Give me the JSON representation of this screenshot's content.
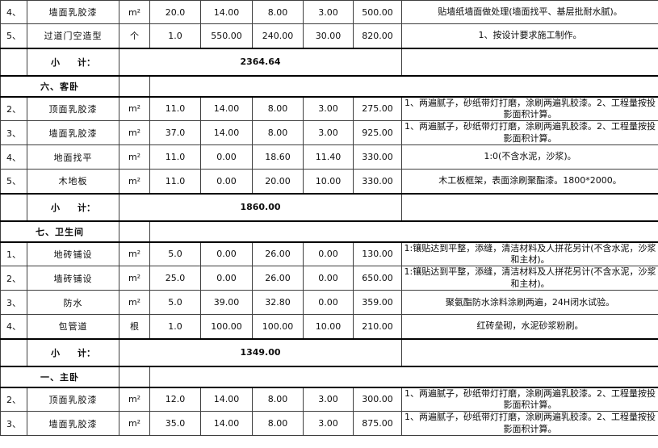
{
  "colors": {
    "border_thin": "#3f3f3f",
    "border_thick": "#000000",
    "text": "#0d0d0d",
    "background": "#ffffff"
  },
  "table": {
    "rows": [
      {
        "type": "item",
        "no": "4、",
        "name": "墙面乳胶漆",
        "unit": "m²",
        "qty": "20.0",
        "price1": "14.00",
        "price2": "8.00",
        "price3": "3.00",
        "total": "500.00",
        "remark": "贴墙纸墙面做处理(墙面找平、基层批耐水腻)。"
      },
      {
        "type": "item",
        "no": "5、",
        "name": "过道门空造型",
        "unit": "个",
        "qty": "1.0",
        "price1": "550.00",
        "price2": "240.00",
        "price3": "30.00",
        "total": "820.00",
        "remark": "1、按设计要求施工制作。"
      },
      {
        "type": "subtotal",
        "label": "小　　计：",
        "total": "2364.64",
        "remark": ""
      },
      {
        "type": "section",
        "title": "六、客卧"
      },
      {
        "type": "item",
        "no": "2、",
        "name": "顶面乳胶漆",
        "unit": "m²",
        "qty": "11.0",
        "price1": "14.00",
        "price2": "8.00",
        "price3": "3.00",
        "total": "275.00",
        "remark": "1、两遍腻子，砂纸带灯打磨，涂刷两遍乳胶漆。2、工程量按投影面积计算。"
      },
      {
        "type": "item",
        "no": "3、",
        "name": "墙面乳胶漆",
        "unit": "m²",
        "qty": "37.0",
        "price1": "14.00",
        "price2": "8.00",
        "price3": "3.00",
        "total": "925.00",
        "remark": "1、两遍腻子，砂纸带灯打磨，涂刷两遍乳胶漆。2、工程量按投影面积计算。"
      },
      {
        "type": "item",
        "no": "4、",
        "name": "地面找平",
        "unit": "m²",
        "qty": "11.0",
        "price1": "0.00",
        "price2": "18.60",
        "price3": "11.40",
        "total": "330.00",
        "remark": "1:0(不含水泥，沙浆)。"
      },
      {
        "type": "item",
        "no": "5、",
        "name": "木地板",
        "unit": "m²",
        "qty": "11.0",
        "price1": "0.00",
        "price2": "20.00",
        "price3": "10.00",
        "total": "330.00",
        "remark": "木工板框架，表面涂刷聚酯漆。1800*2000。"
      },
      {
        "type": "subtotal",
        "label": "小　　计：",
        "total": "1860.00",
        "remark": ""
      },
      {
        "type": "section",
        "title": "七、卫生间"
      },
      {
        "type": "item",
        "no": "1、",
        "name": "地砖铺设",
        "unit": "m²",
        "qty": "5.0",
        "price1": "0.00",
        "price2": "26.00",
        "price3": "0.00",
        "total": "130.00",
        "remark": "1:镶贴达到平整，添缝，清洁材料及人拼花另计(不含水泥，沙浆和主材)。"
      },
      {
        "type": "item",
        "no": "2、",
        "name": "墙砖铺设",
        "unit": "m²",
        "qty": "25.0",
        "price1": "0.00",
        "price2": "26.00",
        "price3": "0.00",
        "total": "650.00",
        "remark": "1:镶贴达到平整，添缝，清洁材料及人拼花另计(不含水泥，沙浆和主材)。"
      },
      {
        "type": "item",
        "no": "3、",
        "name": "防水",
        "unit": "m²",
        "qty": "5.0",
        "price1": "39.00",
        "price2": "32.80",
        "price3": "0.00",
        "total": "359.00",
        "remark": "聚氨酯防水涂料涂刷两遍，24H闭水试验。"
      },
      {
        "type": "item",
        "no": "4、",
        "name": "包管道",
        "unit": "根",
        "qty": "1.0",
        "price1": "100.00",
        "price2": "100.00",
        "price3": "10.00",
        "total": "210.00",
        "remark": "红砖垒砌，水泥砂浆粉刷。"
      },
      {
        "type": "subtotal",
        "label": "小　　计：",
        "total": "1349.00",
        "remark": ""
      },
      {
        "type": "section",
        "title": "一、主卧"
      },
      {
        "type": "item",
        "no": "2、",
        "name": "顶面乳胶漆",
        "unit": "m²",
        "qty": "12.0",
        "price1": "14.00",
        "price2": "8.00",
        "price3": "3.00",
        "total": "300.00",
        "remark": "1、两遍腻子，砂纸带灯打磨，涂刷两遍乳胶漆。2、工程量按投影面积计算。"
      },
      {
        "type": "item",
        "no": "3、",
        "name": "墙面乳胶漆",
        "unit": "m²",
        "qty": "35.0",
        "price1": "14.00",
        "price2": "8.00",
        "price3": "3.00",
        "total": "875.00",
        "remark": "1、两遍腻子，砂纸带灯打磨，涂刷两遍乳胶漆。2、工程量按投影面积计算。"
      }
    ]
  }
}
